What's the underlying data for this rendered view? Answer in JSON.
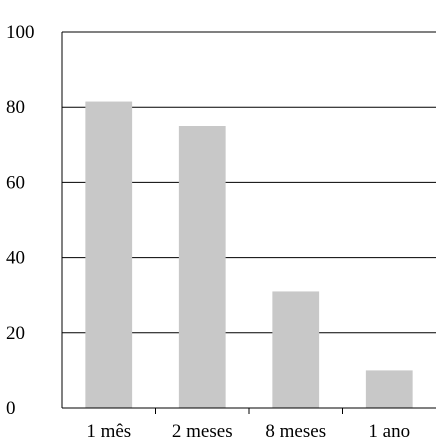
{
  "chart_data": {
    "type": "bar",
    "categories": [
      "1 mês",
      "2 meses",
      "8 meses",
      "1 ano"
    ],
    "series": [
      {
        "values": [
          81.5,
          75,
          31,
          10
        ]
      }
    ],
    "ylim": [
      0,
      100
    ],
    "yticks": [
      0,
      20,
      40,
      60,
      80,
      100
    ],
    "grid": true,
    "bar_color": "#c8c8c8",
    "title": "",
    "xlabel": "",
    "ylabel": ""
  }
}
